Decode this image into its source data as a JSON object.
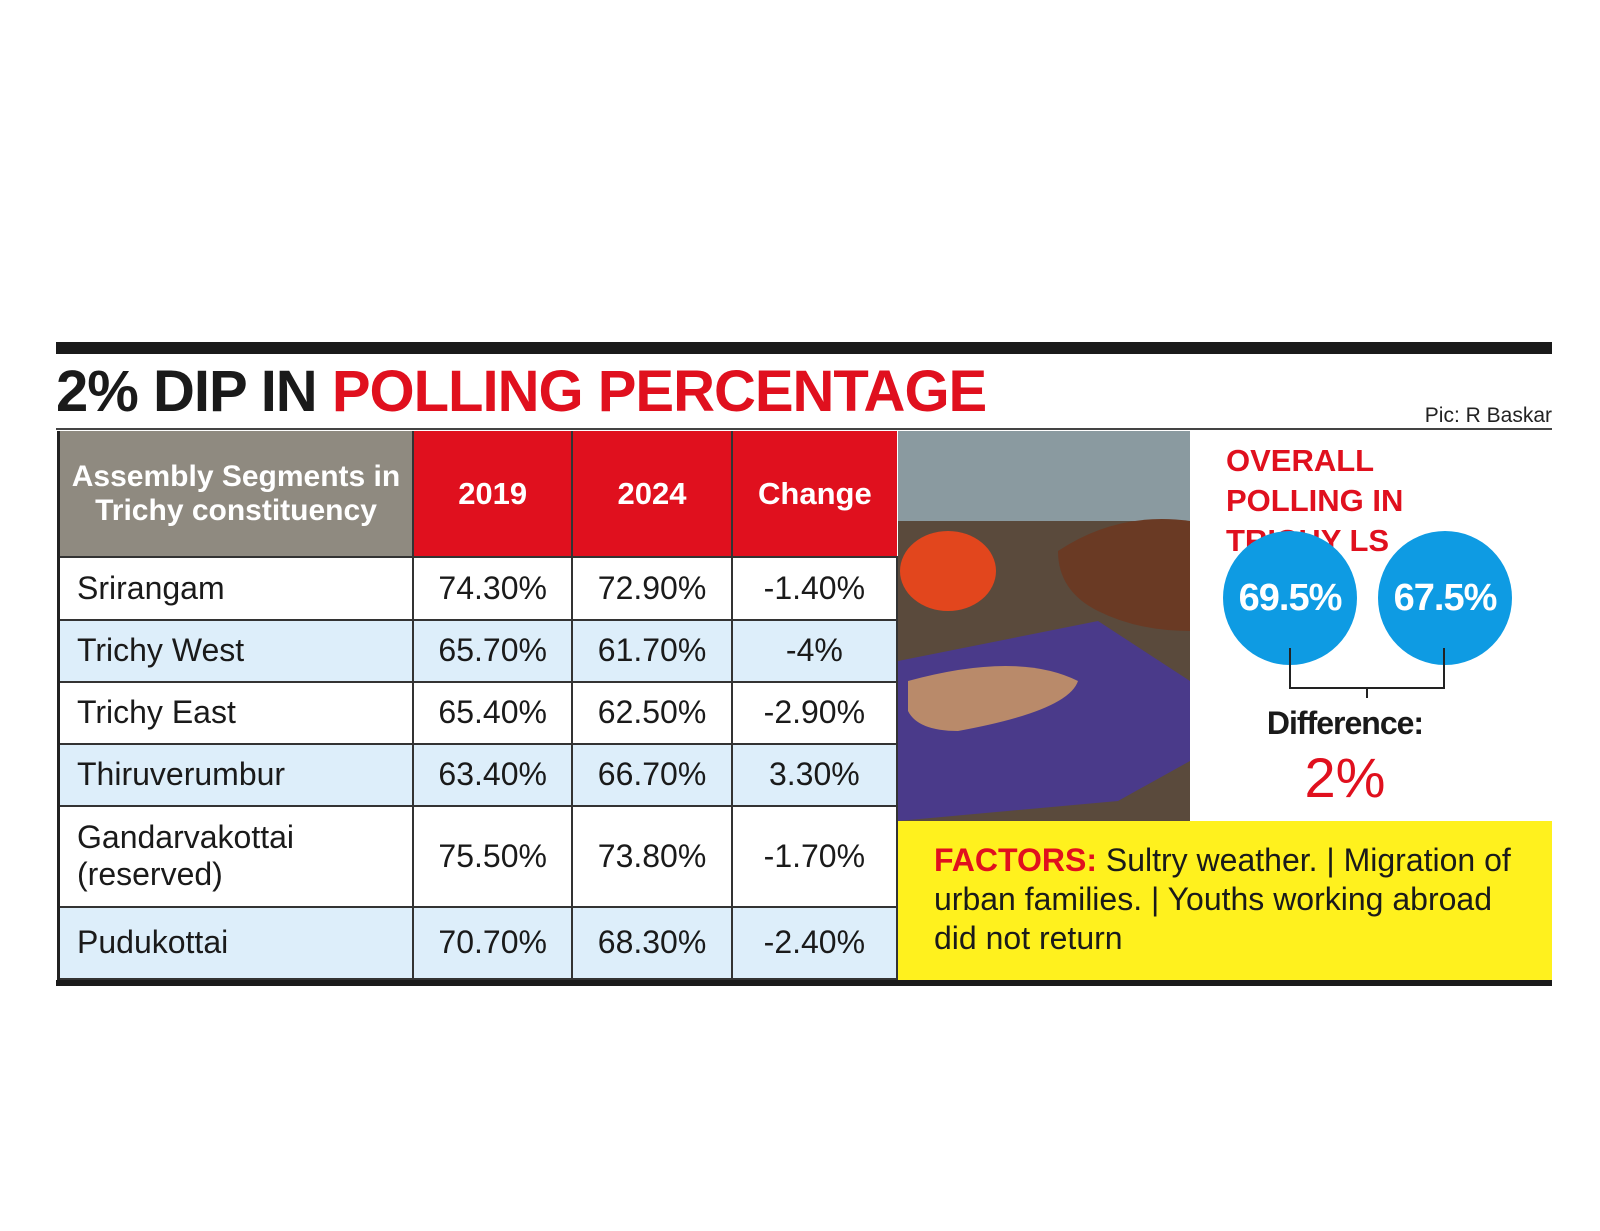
{
  "title": {
    "lead": "2% DIP IN",
    "highlight": "POLLING PERCENTAGE"
  },
  "credit": "Pic: R Baskar",
  "table": {
    "header": [
      "Assembly Segments in Trichy constituency",
      "2019",
      "2024",
      "Change"
    ],
    "rows": [
      [
        "Srirangam",
        "74.30%",
        "72.90%",
        "-1.40%"
      ],
      [
        "Trichy West",
        "65.70%",
        "61.70%",
        "-4%"
      ],
      [
        "Trichy East",
        "65.40%",
        "62.50%",
        "-2.90%"
      ],
      [
        "Thiruverumbur",
        "63.40%",
        "66.70%",
        "3.30%"
      ],
      [
        "Gandarvakottai (reserved)",
        "75.50%",
        "73.80%",
        "-1.70%"
      ],
      [
        "Pudukottai",
        "70.70%",
        "68.30%",
        "-2.40%"
      ]
    ]
  },
  "overall": {
    "title": "OVERALL POLLING IN TRICHY LS",
    "circles": [
      "69.5%",
      "67.5%"
    ],
    "difference_label": "Difference:",
    "difference": "2%"
  },
  "factors": {
    "label": "FACTORS:",
    "text": "Sultry weather. | Migration of urban families. | Youths working abroad did not return"
  }
}
